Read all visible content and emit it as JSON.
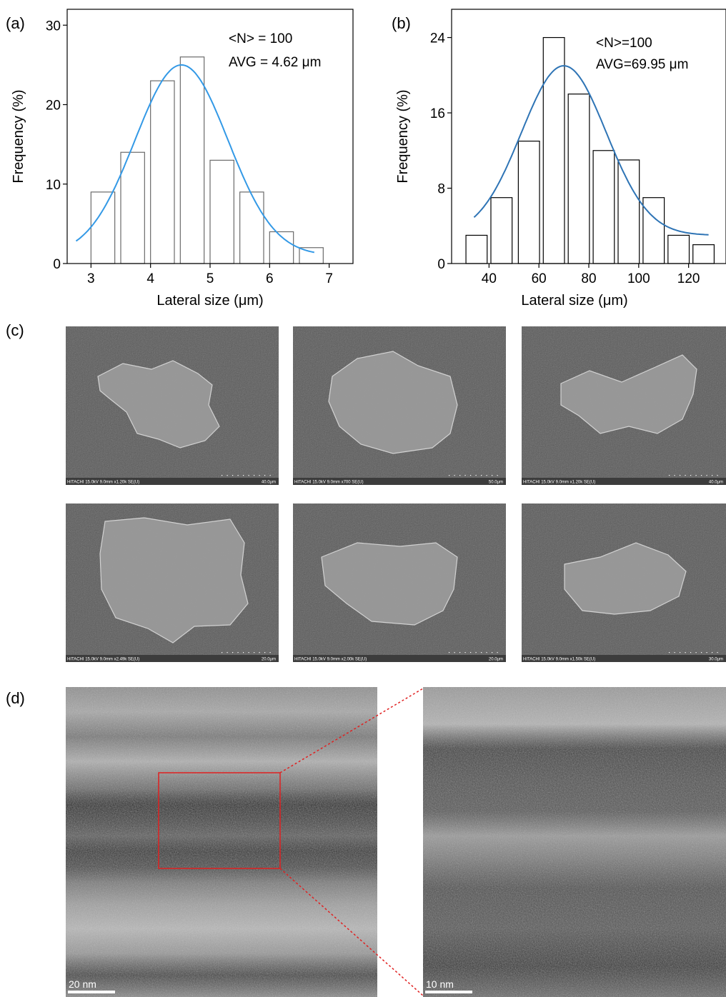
{
  "panel_labels": {
    "a": "(a)",
    "b": "(b)",
    "c": "(c)",
    "d": "(d)"
  },
  "chart_data": [
    {
      "id": "a",
      "type": "bar",
      "xlabel": "Lateral size (μm)",
      "ylabel": "Frequency (%)",
      "xlim": [
        2.6,
        7.4
      ],
      "ylim": [
        0,
        32
      ],
      "xticks": [
        3,
        4,
        5,
        6,
        7
      ],
      "yticks": [
        0,
        10,
        20,
        30
      ],
      "bin_width": 0.4,
      "bin_centers": [
        3.2,
        3.7,
        4.2,
        4.7,
        5.2,
        5.7,
        6.2,
        6.7
      ],
      "values": [
        9,
        14,
        23,
        26,
        13,
        9,
        4,
        2
      ],
      "fit": {
        "type": "gaussian",
        "mean": 4.52,
        "sigma": 0.78,
        "peak": 25.0,
        "offset": 1.0,
        "x_range": [
          2.75,
          6.75
        ],
        "color": "#3399e6"
      },
      "annotations": [
        "<N> = 100",
        "AVG = 4.62 μm"
      ],
      "grid": false
    },
    {
      "id": "b",
      "type": "bar",
      "xlabel": "Lateral size (μm)",
      "ylabel": "Frequency (%)",
      "xlim": [
        25,
        135
      ],
      "ylim": [
        0,
        27
      ],
      "xticks": [
        40,
        60,
        80,
        100,
        120
      ],
      "yticks": [
        0,
        8,
        16,
        24
      ],
      "bin_width": 8.5,
      "bin_centers": [
        35,
        45,
        56,
        66,
        76,
        86,
        96,
        106,
        116,
        126
      ],
      "values": [
        3,
        7,
        13,
        24,
        18,
        12,
        11,
        7,
        3,
        2
      ],
      "fit": {
        "type": "gaussian",
        "mean": 70,
        "sigma": 17,
        "peak": 21.0,
        "offset": 3.0,
        "x_range": [
          34,
          128
        ],
        "color": "#2e74b5"
      },
      "annotations": [
        "<N>=100",
        "AVG=69.95 μm"
      ],
      "grid": false
    }
  ],
  "sem_images": [
    {
      "caption": "HITACHI 15.0kV 9.0mm x1.20k SE(U)",
      "scale": "40.0μm"
    },
    {
      "caption": "HITACHI 15.0kV 9.0mm x700 SE(U)",
      "scale": "50.0μm"
    },
    {
      "caption": "HITACHI 15.0kV 9.0mm x1.20k SE(U)",
      "scale": "40.0μm"
    },
    {
      "caption": "HITACHI 15.0kV 9.0mm x2.49k SE(U)",
      "scale": "20.0μm"
    },
    {
      "caption": "HITACHI 15.0kV 9.0mm x2.00k SE(U)",
      "scale": "20.0μm"
    },
    {
      "caption": "HITACHI 15.0kV 9.0mm x1.50k SE(U)",
      "scale": "30.0μm"
    }
  ],
  "tem_images": [
    {
      "scale": "20 nm"
    },
    {
      "scale": "10 nm"
    }
  ],
  "colors": {
    "zoom_box": "#e02020",
    "sem_background": "#5a5a5a",
    "tem_background": "#8a8a8a"
  }
}
